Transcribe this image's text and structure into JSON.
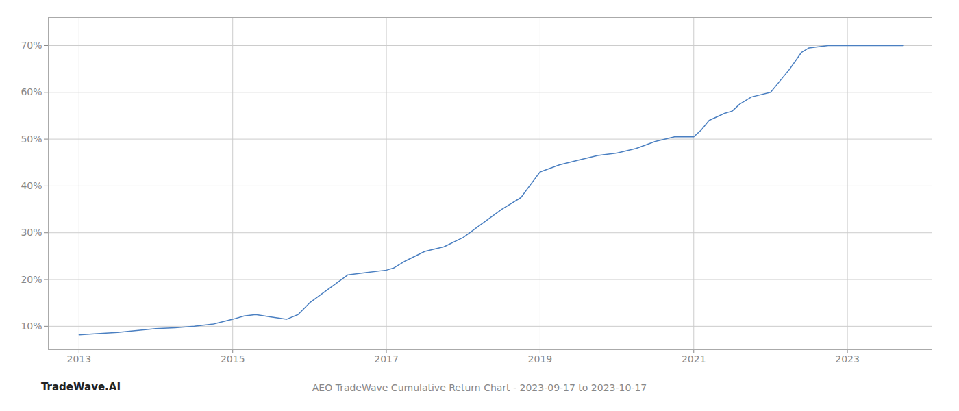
{
  "chart_data": {
    "type": "line",
    "title": "AEO TradeWave Cumulative Return Chart - 2023-09-17 to 2023-10-17",
    "annotations": [
      "TradeWave.AI"
    ],
    "color": "#4a7fc1",
    "x": [
      2013.0,
      2013.2,
      2013.5,
      2013.75,
      2014.0,
      2014.25,
      2014.5,
      2014.75,
      2015.0,
      2015.15,
      2015.3,
      2015.5,
      2015.7,
      2015.85,
      2016.0,
      2016.25,
      2016.5,
      2016.75,
      2017.0,
      2017.1,
      2017.25,
      2017.5,
      2017.75,
      2018.0,
      2018.25,
      2018.5,
      2018.75,
      2019.0,
      2019.25,
      2019.5,
      2019.75,
      2020.0,
      2020.25,
      2020.5,
      2020.75,
      2021.0,
      2021.1,
      2021.2,
      2021.4,
      2021.5,
      2021.6,
      2021.75,
      2022.0,
      2022.1,
      2022.25,
      2022.4,
      2022.5,
      2022.75,
      2023.0,
      2023.3,
      2023.72
    ],
    "values": [
      8.2,
      8.4,
      8.7,
      9.1,
      9.5,
      9.7,
      10.0,
      10.5,
      11.5,
      12.2,
      12.5,
      12.0,
      11.5,
      12.5,
      15.0,
      18.0,
      21.0,
      21.5,
      22.0,
      22.5,
      24.0,
      26.0,
      27.0,
      29.0,
      32.0,
      35.0,
      37.5,
      43.0,
      44.5,
      45.5,
      46.5,
      47.0,
      48.0,
      49.5,
      50.5,
      50.5,
      52.0,
      54.0,
      55.5,
      56.0,
      57.5,
      59.0,
      60.0,
      62.0,
      65.0,
      68.5,
      69.5,
      70.0,
      70.0,
      70.0,
      70.0
    ],
    "xlim": [
      2012.6,
      2024.1
    ],
    "ylim": [
      5,
      76
    ],
    "xticks": [
      2013,
      2015,
      2017,
      2019,
      2021,
      2023
    ],
    "yticks": [
      {
        "value": 10,
        "label": "10%"
      },
      {
        "value": 20,
        "label": "20%"
      },
      {
        "value": 30,
        "label": "30%"
      },
      {
        "value": 40,
        "label": "40%"
      },
      {
        "value": 50,
        "label": "50%"
      },
      {
        "value": 60,
        "label": "60%"
      },
      {
        "value": 70,
        "label": "70%"
      }
    ],
    "grid": true
  }
}
